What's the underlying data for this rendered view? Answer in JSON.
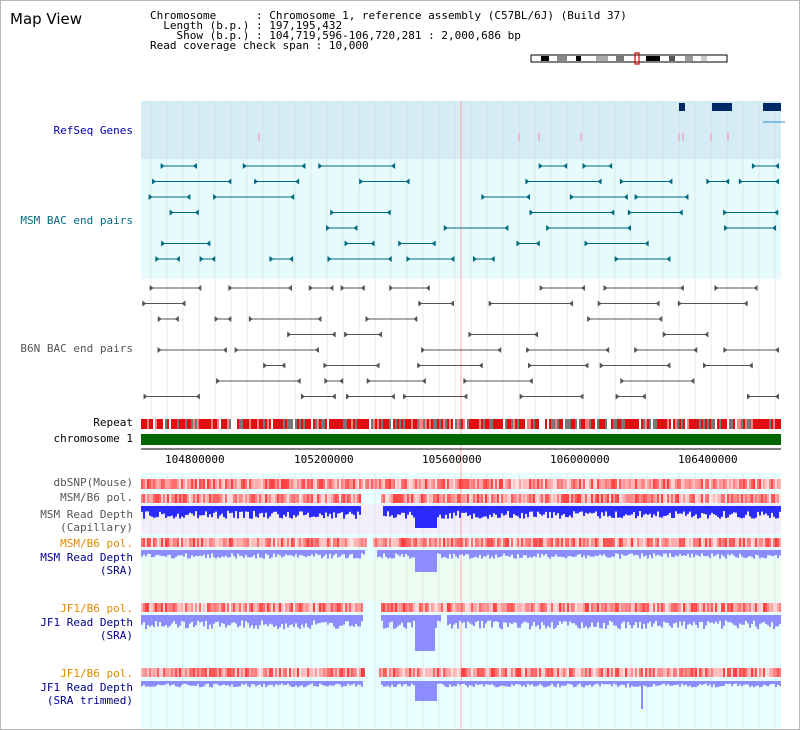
{
  "title": "Map View",
  "info": {
    "chromosome_label": "Chromosome",
    "chromosome_value": "Chromosome 1, reference assembly (C57BL/6J) (Build 37)",
    "length_label": "Length (b.p.)",
    "length_value": "197,195,432",
    "show_label": "Show (b.p.)",
    "show_value": "104,719,596-106,720,281 : 2,000,686 bp",
    "coverage_label": "Read coverage check span",
    "coverage_value": "10,000"
  },
  "tracks": {
    "refseq": "RefSeq Genes",
    "msm_bac": "MSM BAC end pairs",
    "b6n_bac": "B6N BAC end pairs",
    "repeat": "Repeat",
    "chromosome": "chromosome 1",
    "dbsnp": "dbSNP(Mouse)",
    "msm_b6_pol": "MSM/B6 pol.",
    "msm_depth_cap": "MSM Read Depth\n(Capillary)",
    "msm_b6_pol2": "MSM/B6 pol.",
    "msm_depth_sra": "MSM Read Depth\n(SRA)",
    "jf1_b6_pol": "JF1/B6 pol.",
    "jf1_depth_sra": "JF1 Read Depth\n(SRA)",
    "jf1_b6_pol2": "JF1/B6 pol.",
    "jf1_depth_trim": "JF1 Read Depth\n(SRA trimmed)"
  },
  "axis": {
    "ticks": [
      "104800000",
      "105200000",
      "105600000",
      "106000000",
      "106400000"
    ]
  },
  "colors": {
    "refseq_bg": "#d5ecf7",
    "msm_bg": "#e6fbfb",
    "b6n_bg": "#ffffff",
    "chrom_green": "#006600",
    "depth_blue": "#2b2bff",
    "depth_lightblue": "#8c8cff",
    "lane_bg": "#e8ffff"
  }
}
